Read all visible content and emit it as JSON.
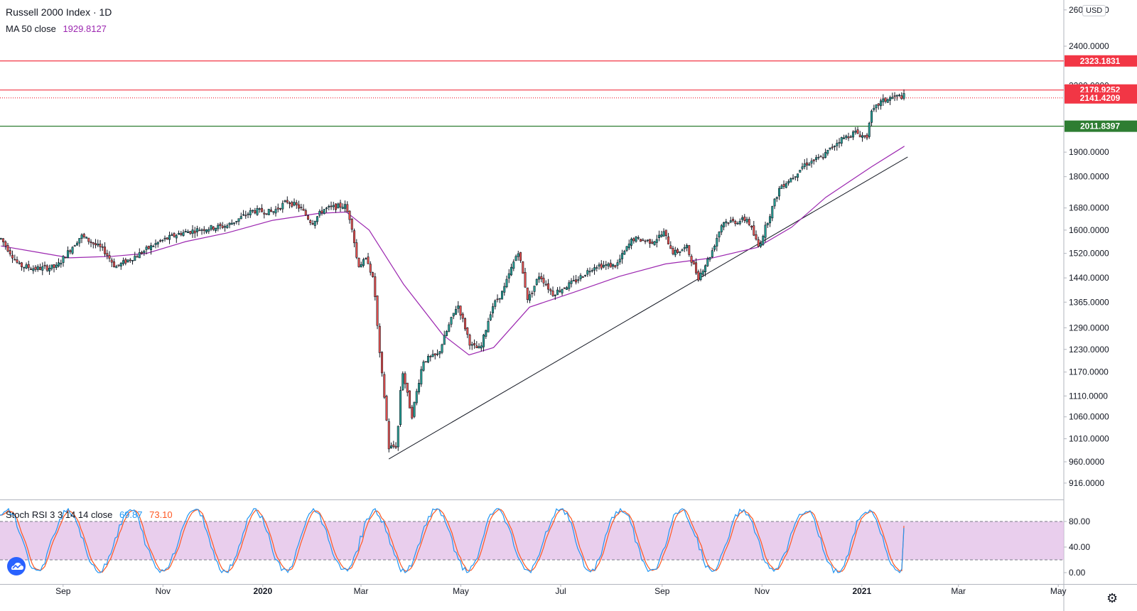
{
  "header": {
    "symbol_title": "Russell 2000 Index · 1D",
    "ma_label": "MA 50 close",
    "ma_value": "1929.8127",
    "ma_color": "#9c27b0",
    "stoch_label": "Stoch RSI 3 3 14 14 close",
    "stoch_k_value": "69.87",
    "stoch_d_value": "73.10",
    "stoch_k_color": "#2196f3",
    "stoch_d_color": "#ff5722"
  },
  "toolbar": {
    "currency_badge": "USD",
    "settings_icon": "gear-icon",
    "logo_icon": "tradingview-cloud-icon"
  },
  "chart_data": {
    "type": "candlestick",
    "price_scale": "log",
    "price_ticks": [
      "2600.0000",
      "2400.0000",
      "2200.0000",
      "1900.0000",
      "1800.0000",
      "1680.0000",
      "1600.0000",
      "1520.0000",
      "1440.0000",
      "1365.0000",
      "1290.0000",
      "1230.0000",
      "1170.0000",
      "1110.0000",
      "1060.0000",
      "1010.0000",
      "960.0000",
      "916.0000"
    ],
    "time_ticks": [
      "Sep",
      "Nov",
      "2020",
      "Mar",
      "May",
      "Jul",
      "Sep",
      "Nov",
      "2021",
      "Mar",
      "May"
    ],
    "horizontal_levels": [
      {
        "value": 2323.1831,
        "label": "2323.1831",
        "color": "#f23645",
        "style": "solid"
      },
      {
        "value": 2178.9252,
        "label": "2178.9252",
        "color": "#f23645",
        "style": "solid"
      },
      {
        "value": 2141.4209,
        "label": "2141.4209",
        "color": "#f23645",
        "style": "dotted"
      },
      {
        "value": 2011.8397,
        "label": "2011.8397",
        "color": "#2e7d32",
        "style": "solid"
      }
    ],
    "trendline": {
      "from": {
        "date": "2020-03-18",
        "price": 966
      },
      "to": {
        "date": "2021-01-29",
        "price": 1880
      }
    },
    "price_path": [
      [
        "2019-07-25",
        1570
      ],
      [
        "2019-08-05",
        1480
      ],
      [
        "2019-08-15",
        1470
      ],
      [
        "2019-08-28",
        1475
      ],
      [
        "2019-09-12",
        1580
      ],
      [
        "2019-09-26",
        1530
      ],
      [
        "2019-10-03",
        1475
      ],
      [
        "2019-10-15",
        1510
      ],
      [
        "2019-10-30",
        1560
      ],
      [
        "2019-11-12",
        1590
      ],
      [
        "2019-11-26",
        1605
      ],
      [
        "2019-12-10",
        1615
      ],
      [
        "2019-12-26",
        1670
      ],
      [
        "2020-01-07",
        1665
      ],
      [
        "2020-01-16",
        1705
      ],
      [
        "2020-01-24",
        1680
      ],
      [
        "2020-01-31",
        1625
      ],
      [
        "2020-02-07",
        1675
      ],
      [
        "2020-02-20",
        1690
      ],
      [
        "2020-02-24",
        1630
      ],
      [
        "2020-02-28",
        1480
      ],
      [
        "2020-03-05",
        1500
      ],
      [
        "2020-03-09",
        1420
      ],
      [
        "2020-03-12",
        1230
      ],
      [
        "2020-03-16",
        1080
      ],
      [
        "2020-03-18",
        990
      ],
      [
        "2020-03-23",
        995
      ],
      [
        "2020-03-26",
        1180
      ],
      [
        "2020-04-01",
        1060
      ],
      [
        "2020-04-08",
        1200
      ],
      [
        "2020-04-17",
        1215
      ],
      [
        "2020-04-29",
        1360
      ],
      [
        "2020-05-07",
        1240
      ],
      [
        "2020-05-13",
        1230
      ],
      [
        "2020-05-20",
        1350
      ],
      [
        "2020-05-27",
        1400
      ],
      [
        "2020-06-05",
        1530
      ],
      [
        "2020-06-11",
        1370
      ],
      [
        "2020-06-18",
        1450
      ],
      [
        "2020-06-26",
        1390
      ],
      [
        "2020-07-10",
        1430
      ],
      [
        "2020-07-22",
        1480
      ],
      [
        "2020-08-04",
        1480
      ],
      [
        "2020-08-14",
        1570
      ],
      [
        "2020-08-26",
        1560
      ],
      [
        "2020-09-02",
        1590
      ],
      [
        "2020-09-08",
        1520
      ],
      [
        "2020-09-16",
        1540
      ],
      [
        "2020-09-23",
        1440
      ],
      [
        "2020-10-01",
        1520
      ],
      [
        "2020-10-08",
        1630
      ],
      [
        "2020-10-16",
        1630
      ],
      [
        "2020-10-23",
        1640
      ],
      [
        "2020-10-30",
        1540
      ],
      [
        "2020-11-06",
        1660
      ],
      [
        "2020-11-12",
        1760
      ],
      [
        "2020-11-20",
        1800
      ],
      [
        "2020-11-27",
        1850
      ],
      [
        "2020-12-08",
        1880
      ],
      [
        "2020-12-18",
        1950
      ],
      [
        "2020-12-28",
        1985
      ],
      [
        "2021-01-04",
        1960
      ],
      [
        "2021-01-06",
        2060
      ],
      [
        "2021-01-12",
        2120
      ],
      [
        "2021-01-20",
        2145
      ],
      [
        "2021-01-27",
        2150
      ]
    ],
    "ma50_path": [
      [
        "2019-07-25",
        1545
      ],
      [
        "2019-08-15",
        1525
      ],
      [
        "2019-09-05",
        1505
      ],
      [
        "2019-10-01",
        1510
      ],
      [
        "2019-10-22",
        1520
      ],
      [
        "2019-11-15",
        1560
      ],
      [
        "2019-12-10",
        1590
      ],
      [
        "2020-01-07",
        1635
      ],
      [
        "2020-02-04",
        1660
      ],
      [
        "2020-02-21",
        1665
      ],
      [
        "2020-03-06",
        1600
      ],
      [
        "2020-03-27",
        1420
      ],
      [
        "2020-04-20",
        1270
      ],
      [
        "2020-05-06",
        1215
      ],
      [
        "2020-05-21",
        1235
      ],
      [
        "2020-06-12",
        1350
      ],
      [
        "2020-07-09",
        1395
      ],
      [
        "2020-08-06",
        1445
      ],
      [
        "2020-09-03",
        1485
      ],
      [
        "2020-10-02",
        1505
      ],
      [
        "2020-10-29",
        1540
      ],
      [
        "2020-11-19",
        1610
      ],
      [
        "2020-12-10",
        1720
      ],
      [
        "2021-01-07",
        1840
      ],
      [
        "2021-01-27",
        1925
      ]
    ],
    "stoch_rsi": {
      "levels": [
        80,
        20
      ],
      "ticks": [
        "80.00",
        "40.00",
        "0.00"
      ],
      "k_last": 69.87,
      "d_last": 73.1
    }
  }
}
